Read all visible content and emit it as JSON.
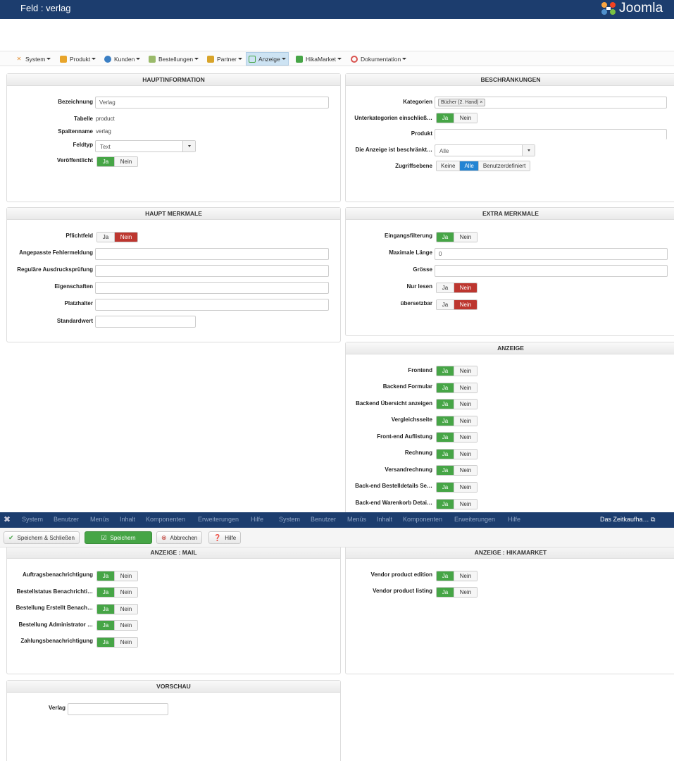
{
  "window_title": "Feld : verlag",
  "brand": "Joomla",
  "menu": [
    {
      "label": "System",
      "color": "#e08b2c"
    },
    {
      "label": "Produkt",
      "color": "#e8a52b"
    },
    {
      "label": "Kunden",
      "color": "#3b7fc4"
    },
    {
      "label": "Bestellungen",
      "color": "#7a9a4a"
    },
    {
      "label": "Partner",
      "color": "#d8a42a"
    },
    {
      "label": "Anzeige",
      "color": "#46a546"
    },
    {
      "label": "HikaMarket",
      "color": "#46a546"
    },
    {
      "label": "Dokumentation",
      "color": "#d9534f"
    }
  ],
  "haupt": {
    "title": "HAUPTINFORMATION",
    "bezeichnung_label": "Bezeichnung",
    "bezeichnung_value": "Verlag",
    "tabelle_label": "Tabelle",
    "tabelle_value": "product",
    "spaltenname_label": "Spaltenname",
    "spaltenname_value": "verlag",
    "feldtyp_label": "Feldtyp",
    "feldtyp_value": "Text",
    "veroeffentlicht_label": "Veröffentlicht"
  },
  "beschr": {
    "title": "BESCHRÄNKUNGEN",
    "kategorien_label": "Kategorien",
    "kategorien_tag": "Bücher (2. Hand)",
    "unterkat_label": "Unterkategorien einschließ…",
    "produkt_label": "Produkt",
    "anzeige_label": "Die Anzeige ist beschränkt…",
    "anzeige_value": "Alle",
    "zugriff_label": "Zugriffsebene",
    "zugriff_options": [
      "Keine",
      "Alle",
      "Benutzerdefiniert"
    ]
  },
  "hauptmerkmale": {
    "title": "HAUPT MERKMALE",
    "pflichtfeld_label": "Pflichtfeld",
    "fehler_label": "Angepasste Fehlermeldung",
    "regex_label": "Reguläre Ausdrucksprüfung",
    "eigenschaften_label": "Eigenschaften",
    "platzhalter_label": "Platzhalter",
    "standardwert_label": "Standardwert"
  },
  "extra": {
    "title": "EXTRA MERKMALE",
    "eingang_label": "Eingangsfilterung",
    "maxlen_label": "Maximale Länge",
    "maxlen_value": "0",
    "groesse_label": "Grösse",
    "nurlesen_label": "Nur lesen",
    "uebersetzbar_label": "übersetzbar"
  },
  "anzeige": {
    "title": "ANZEIGE",
    "rows": [
      "Frontend",
      "Backend Formular",
      "Backend Übersicht anzeigen",
      "Vergleichsseite",
      "Front-end Auflistung",
      "Rechnung",
      "Versandrechnung",
      "Back-end Bestelldetails Se…",
      "Back-end Warenkorb Detai…"
    ]
  },
  "mail": {
    "title": "ANZEIGE : MAIL",
    "rows": [
      "Auftragsbenachrichtigung",
      "Bestellstatus Benachrichti…",
      "Bestellung Erstellt Benach…",
      "Bestellung Administrator …",
      "Zahlungsbenachrichtigung"
    ]
  },
  "hikamarket": {
    "title": "ANZEIGE : HIKAMARKET",
    "rows": [
      "Vendor product edition",
      "Vendor product listing"
    ]
  },
  "vorschau": {
    "title": "VORSCHAU",
    "verlag_label": "Verlag"
  },
  "toggle": {
    "ja": "Ja",
    "nein": "Nein"
  },
  "admin_menu": [
    "System",
    "Benutzer",
    "Menüs",
    "Inhalt",
    "Komponenten",
    "Erweiterungen",
    "Hilfe",
    "System",
    "Benutzer",
    "Menüs",
    "Inhalt",
    "Komponenten",
    "Erweiterungen",
    "Hilfe"
  ],
  "site_name": "Das Zeitkaufha…",
  "toolbar": {
    "save_close": "Speichern & Schließen",
    "save": "Speichern",
    "cancel": "Abbrechen",
    "help": "Hilfe"
  }
}
